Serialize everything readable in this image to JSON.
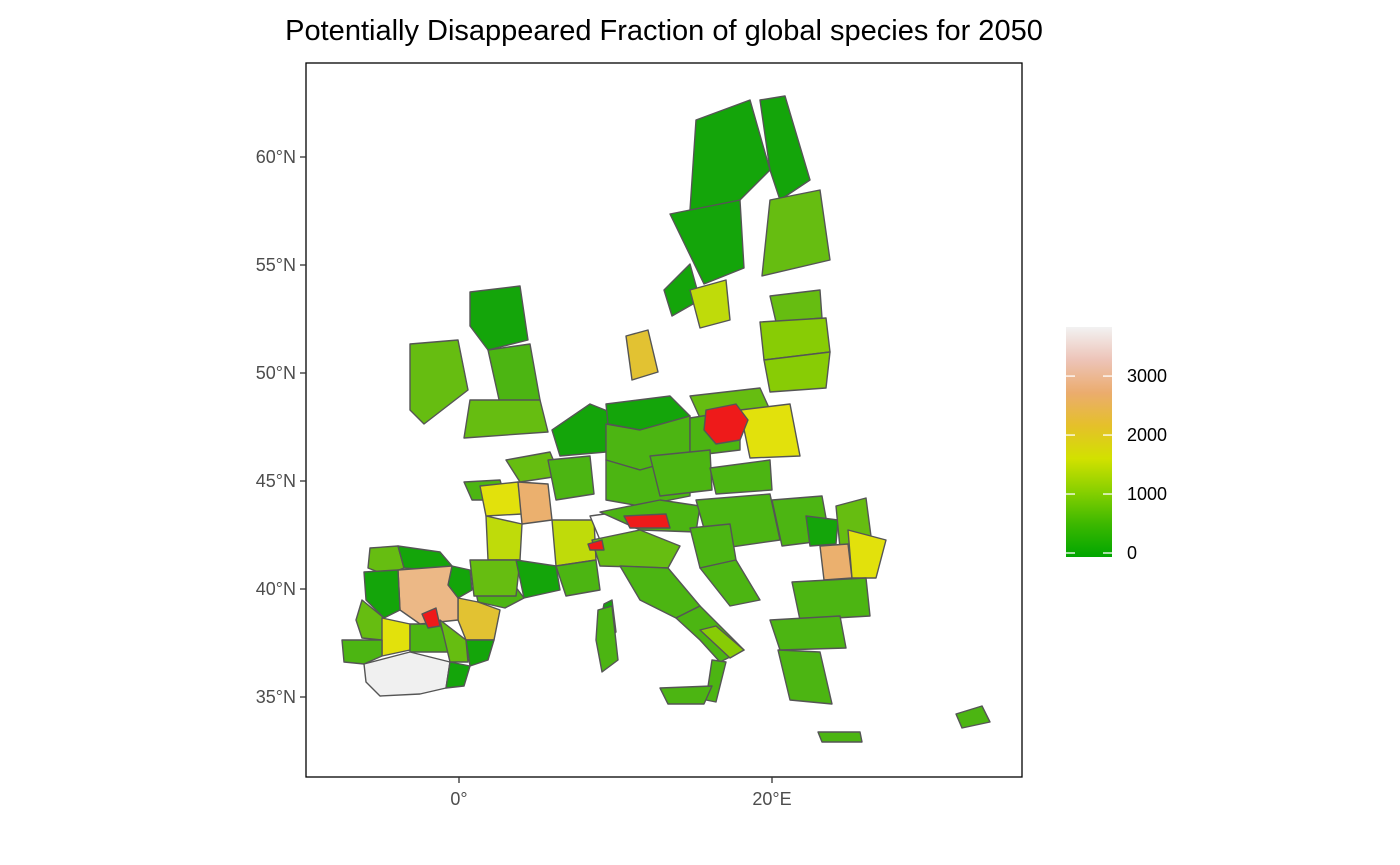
{
  "chart_data": {
    "type": "choropleth map",
    "title": "Potentially Disappeared Fraction of global species for 2050",
    "xlabel": "",
    "ylabel": "",
    "x_ticks": [
      {
        "value": 0,
        "label": "0°"
      },
      {
        "value": 20,
        "label": "20°E"
      }
    ],
    "y_ticks": [
      {
        "value": 35,
        "label": "35°N"
      },
      {
        "value": 40,
        "label": "40°N"
      },
      {
        "value": 45,
        "label": "45°N"
      },
      {
        "value": 50,
        "label": "50°N"
      },
      {
        "value": 55,
        "label": "55°N"
      },
      {
        "value": 60,
        "label": "60°N"
      }
    ],
    "legend": {
      "position": "right",
      "range": [
        0,
        3900
      ],
      "breaks": [
        {
          "value": 0,
          "label": "0"
        },
        {
          "value": 1000,
          "label": "1000"
        },
        {
          "value": 2000,
          "label": "2000"
        },
        {
          "value": 3000,
          "label": "3000"
        }
      ],
      "colors": [
        "#00a600",
        "#3cb800",
        "#88d000",
        "#d2e100",
        "#e5c02a",
        "#ebac6e",
        "#edc4b8",
        "#f2f2f2"
      ]
    },
    "grid": false,
    "region_color_scale": {
      "dark_green": "#14a50a",
      "green": "#4cb512",
      "mid_green": "#66bd11",
      "light_green": "#88cc05",
      "yellow_green": "#bfdb0a",
      "yellow": "#e2e10c",
      "gold": "#e2c232",
      "orange": "#ebb06e",
      "salmon": "#ecb886",
      "near_white": "#f0f0f0",
      "red": "#ee1a1a"
    }
  }
}
